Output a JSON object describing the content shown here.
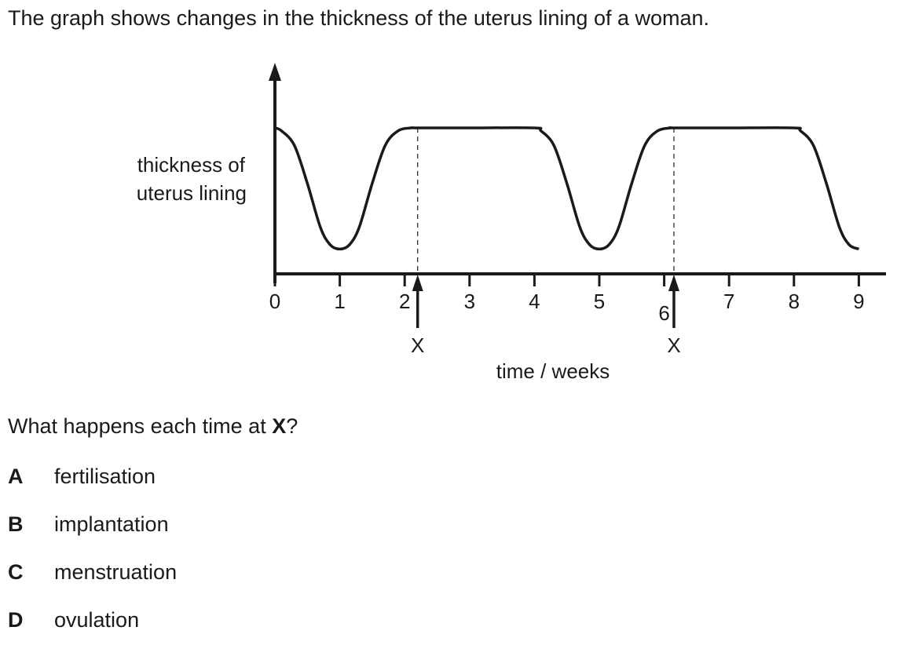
{
  "intro": "The graph shows changes in the thickness of the uterus lining of a woman.",
  "question": {
    "before": "What happens each time at ",
    "bold": "X",
    "after": "?"
  },
  "options": [
    {
      "letter": "A",
      "text": "fertilisation"
    },
    {
      "letter": "B",
      "text": "implantation"
    },
    {
      "letter": "C",
      "text": "menstruation"
    },
    {
      "letter": "D",
      "text": "ovulation"
    }
  ],
  "chart_data": {
    "type": "line",
    "title": "",
    "xlabel": "time / weeks",
    "ylabel": "thickness of uterus lining",
    "ylabel_lines": [
      "thickness of",
      "uterus lining"
    ],
    "xlim": [
      0,
      9.4
    ],
    "ylim": [
      0,
      1.15
    ],
    "x_ticks": [
      0,
      1,
      2,
      3,
      4,
      5,
      6,
      7,
      8,
      9
    ],
    "x_tick_labels": [
      "0",
      "1",
      "2",
      "3",
      "4",
      "5",
      "6",
      "7",
      "8",
      "9"
    ],
    "y_ticks_shown": false,
    "grid": false,
    "series": [
      {
        "x": [
          0,
          0.1,
          0.3,
          0.5,
          0.7,
          0.85,
          1.0,
          1.15,
          1.3,
          1.5,
          1.7,
          1.9,
          2.1,
          2.2,
          3.0,
          4.0,
          4.1,
          4.3,
          4.5,
          4.7,
          4.85,
          5.0,
          5.15,
          5.3,
          5.5,
          5.7,
          5.9,
          6.1,
          6.15,
          7.0,
          8.0,
          8.1,
          8.3,
          8.5,
          8.7,
          8.85,
          9.0
        ],
        "y": [
          1.0,
          0.98,
          0.88,
          0.62,
          0.32,
          0.2,
          0.17,
          0.2,
          0.32,
          0.62,
          0.88,
          0.98,
          1.0,
          1.0,
          1.0,
          1.0,
          0.98,
          0.88,
          0.62,
          0.32,
          0.2,
          0.17,
          0.2,
          0.32,
          0.62,
          0.88,
          0.98,
          1.0,
          1.0,
          1.0,
          1.0,
          0.98,
          0.88,
          0.62,
          0.32,
          0.2,
          0.17
        ]
      }
    ],
    "annotations": [
      {
        "x": 2.2,
        "label": "X"
      },
      {
        "x": 6.15,
        "label": "X"
      }
    ]
  }
}
